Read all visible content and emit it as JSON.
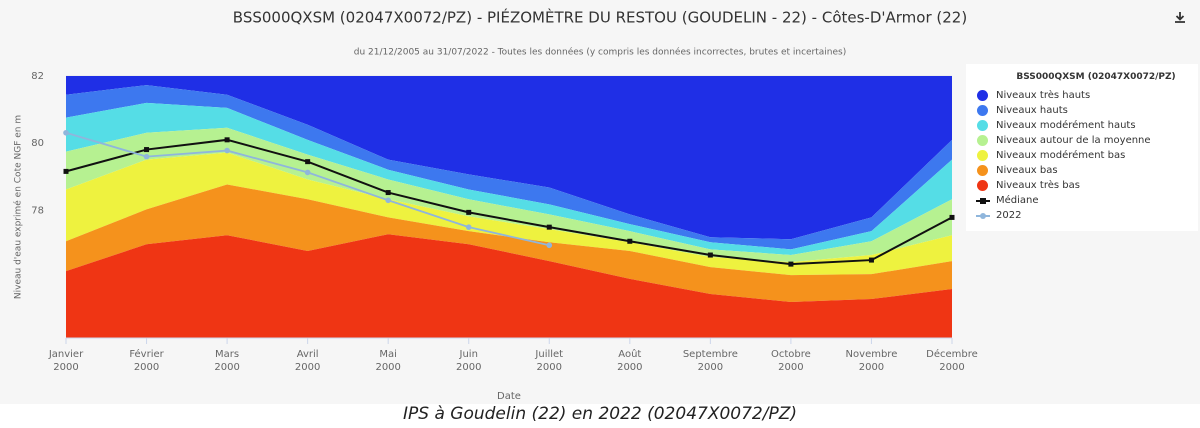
{
  "chart_data": {
    "type": "area",
    "title": "BSS000QXSM (02047X0072/PZ) - PIÉZOMÈTRE DU RESTOU (GOUDELIN - 22) - Côtes-D'Armor (22)",
    "subtitle": "du 21/12/2005 au 31/07/2022 - Toutes les données (y compris les données incorrectes, brutes et incertaines)",
    "y_label": "Niveau d'eau exprimé en Cote NGF en m",
    "x_label": "Date",
    "legend_title": "BSS000QXSM (02047X0072/PZ)",
    "legend": "right",
    "caption": "IPS à Goudelin (22) en 2022 (02047X0072/PZ)",
    "categories": [
      "Janvier 2000",
      "Février 2000",
      "Mars 2000",
      "Avril 2000",
      "Mai 2000",
      "Juin 2000",
      "Juillet 2000",
      "Août 2000",
      "Septembre 2000",
      "Octobre 2000",
      "Novembre 2000",
      "Décembre 2000"
    ],
    "ylim": [
      74.2,
      82
    ],
    "yticks": [
      78,
      80,
      82
    ],
    "series": [
      {
        "name": "Niveaux très hauts",
        "type": "area",
        "color": "#1f2fe6",
        "values": [
          82,
          82,
          82,
          82,
          82,
          82,
          82,
          82,
          82,
          82,
          82,
          82
        ]
      },
      {
        "name": "Niveaux hauts",
        "type": "area",
        "color": "#3d78ef",
        "values": [
          81.44,
          81.73,
          81.44,
          80.55,
          79.51,
          79.07,
          78.68,
          77.88,
          77.2,
          77.14,
          77.79,
          80.1
        ]
      },
      {
        "name": "Niveaux modérément hauts",
        "type": "area",
        "color": "#55dde6",
        "values": [
          80.76,
          81.2,
          81.05,
          80.1,
          79.21,
          78.62,
          78.18,
          77.59,
          77.05,
          76.84,
          77.38,
          79.51
        ]
      },
      {
        "name": "Niveaux autour de la moyenne",
        "type": "area",
        "color": "#b6f191",
        "values": [
          79.75,
          80.31,
          80.46,
          79.66,
          78.92,
          78.33,
          77.88,
          77.38,
          76.84,
          76.67,
          77.08,
          78.33
        ]
      },
      {
        "name": "Niveaux modérément bas",
        "type": "area",
        "color": "#eef23f",
        "values": [
          78.62,
          79.51,
          79.72,
          78.92,
          78.33,
          77.82,
          77.44,
          77.05,
          76.61,
          76.46,
          76.67,
          77.26
        ]
      },
      {
        "name": "Niveaux bas",
        "type": "area",
        "color": "#f5921c",
        "values": [
          77.08,
          78.03,
          78.77,
          78.33,
          77.79,
          77.38,
          77.05,
          76.79,
          76.31,
          76.07,
          76.1,
          76.49
        ]
      },
      {
        "name": "Niveaux très bas",
        "type": "area",
        "color": "#ef3514",
        "values": [
          76.19,
          76.99,
          77.26,
          76.79,
          77.29,
          76.99,
          76.49,
          75.96,
          75.51,
          75.27,
          75.36,
          75.66
        ]
      },
      {
        "name": "Médiane",
        "type": "line",
        "color": "#111111",
        "values": [
          79.16,
          79.81,
          80.1,
          79.45,
          78.53,
          77.94,
          77.5,
          77.08,
          76.67,
          76.4,
          76.52,
          77.79
        ]
      },
      {
        "name": "2022",
        "type": "line",
        "color": "#8fb6dc",
        "values": [
          80.31,
          79.6,
          79.78,
          79.13,
          78.3,
          77.5,
          76.96,
          null,
          null,
          null,
          null,
          null
        ]
      }
    ]
  }
}
